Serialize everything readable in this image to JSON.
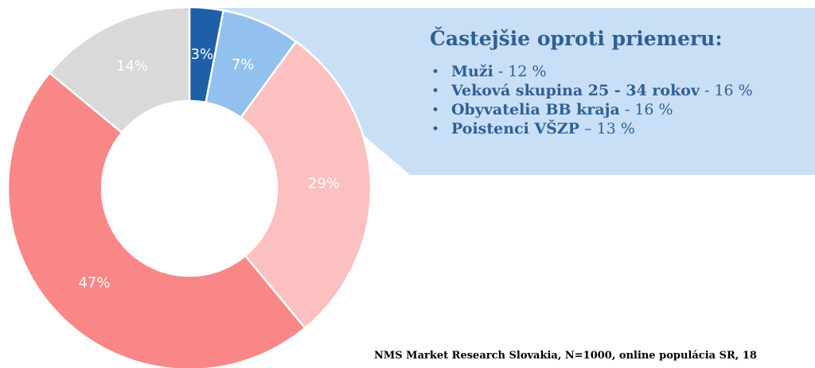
{
  "chart_data": {
    "type": "donut",
    "values": [
      3,
      7,
      29,
      47,
      14
    ],
    "value_labels": [
      "3%",
      "7%",
      "29%",
      "47%",
      "14%"
    ],
    "colors": [
      "#1f5fa8",
      "#92c1ef",
      "#fcc0c0",
      "#fa8787",
      "#d9d9d9"
    ],
    "callout": {
      "title": "Častejšie oproti priemeru:",
      "items": [
        {
          "label": "Muži",
          "detail": "- 12 %"
        },
        {
          "label": "Veková skupina 25 -  34 rokov",
          "detail": "- 16 %"
        },
        {
          "label": "Obyvatelia BB kraja",
          "detail": "- 16 %"
        },
        {
          "label": "Poistenci VŠZP",
          "detail": "– 13 %"
        }
      ]
    },
    "source": "NMS Market Research Slovakia, N=1000, online populácia SR, 18"
  }
}
